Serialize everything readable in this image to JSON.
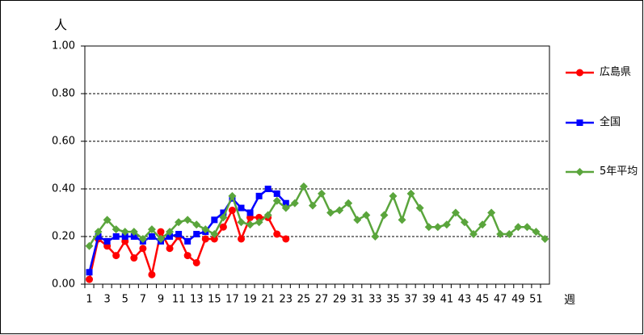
{
  "chart_data": {
    "type": "line",
    "y_label": "人",
    "x_label": "週",
    "categories": [
      "1",
      null,
      "3",
      null,
      "5",
      null,
      "7",
      null,
      "9",
      null,
      "11",
      null,
      "13",
      null,
      "15",
      null,
      "17",
      null,
      "19",
      null,
      "21",
      null,
      "23",
      null,
      "25",
      null,
      "27",
      null,
      "29",
      null,
      "31",
      null,
      "33",
      null,
      "35",
      null,
      "37",
      null,
      "39",
      null,
      "41",
      null,
      "43",
      null,
      "45",
      null,
      "47",
      null,
      "49",
      null,
      "51",
      null
    ],
    "ylim": [
      0,
      1
    ],
    "yticks": [
      {
        "value": 0,
        "label": "0.00"
      },
      {
        "value": 0.2,
        "label": "0.20"
      },
      {
        "value": 0.4,
        "label": "0.40"
      },
      {
        "value": 0.6,
        "label": "0.60"
      },
      {
        "value": 0.8,
        "label": "0.80"
      },
      {
        "value": 1,
        "label": "1.00"
      }
    ],
    "grid": true,
    "legend": "right",
    "series": [
      {
        "name": "広島県",
        "color": "#ff0000",
        "marker": "circle",
        "values": [
          0.02,
          0.19,
          0.16,
          0.12,
          0.18,
          0.11,
          0.15,
          0.04,
          0.22,
          0.15,
          0.2,
          0.12,
          0.09,
          0.19,
          0.19,
          0.24,
          0.31,
          0.19,
          0.28,
          0.28,
          0.28,
          0.21,
          0.19,
          null,
          null,
          null,
          null,
          null,
          null,
          null,
          null,
          null,
          null,
          null,
          null,
          null,
          null,
          null,
          null,
          null,
          null,
          null,
          null,
          null,
          null,
          null,
          null,
          null,
          null,
          null,
          null,
          null
        ]
      },
      {
        "name": "全国",
        "color": "#0000ff",
        "marker": "square",
        "values": [
          0.05,
          0.2,
          0.18,
          0.2,
          0.2,
          0.2,
          0.18,
          0.2,
          0.18,
          0.2,
          0.21,
          0.18,
          0.21,
          0.22,
          0.27,
          0.3,
          0.36,
          0.32,
          0.3,
          0.37,
          0.4,
          0.38,
          0.34,
          null,
          null,
          null,
          null,
          null,
          null,
          null,
          null,
          null,
          null,
          null,
          null,
          null,
          null,
          null,
          null,
          null,
          null,
          null,
          null,
          null,
          null,
          null,
          null,
          null,
          null,
          null,
          null,
          null
        ]
      },
      {
        "name": "5年平均",
        "color": "#5aa53c",
        "marker": "diamond",
        "values": [
          0.16,
          0.22,
          0.27,
          0.23,
          0.22,
          0.22,
          0.19,
          0.23,
          0.19,
          0.22,
          0.26,
          0.27,
          0.25,
          0.23,
          0.21,
          0.28,
          0.37,
          0.26,
          0.25,
          0.26,
          0.29,
          0.35,
          0.32,
          0.34,
          0.41,
          0.33,
          0.38,
          0.3,
          0.31,
          0.34,
          0.27,
          0.29,
          0.2,
          0.29,
          0.37,
          0.27,
          0.38,
          0.32,
          0.24,
          0.24,
          0.25,
          0.3,
          0.26,
          0.21,
          0.25,
          0.3,
          0.21,
          0.21,
          0.24,
          0.24,
          0.22,
          0.19
        ]
      }
    ]
  }
}
